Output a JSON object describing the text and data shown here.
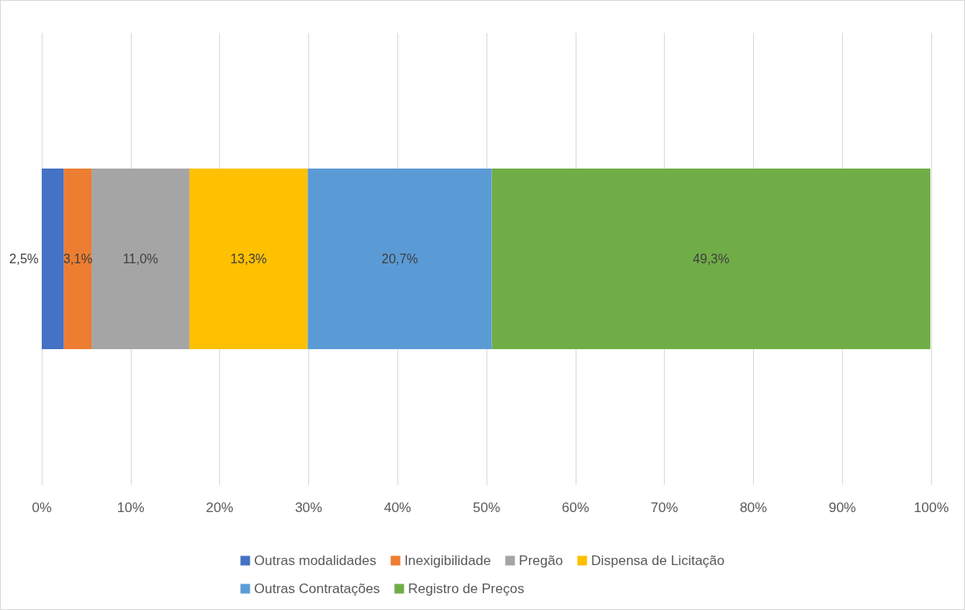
{
  "chart_data": {
    "type": "bar",
    "orientation": "horizontal",
    "stacked": true,
    "categories": [
      null
    ],
    "series": [
      {
        "name": "Outras modalidades",
        "color": "#4472c4",
        "values": [
          2.5
        ],
        "value_labels": [
          "2,5%"
        ]
      },
      {
        "name": "Inexigibilidade",
        "color": "#ed7d31",
        "values": [
          3.1
        ],
        "value_labels": [
          "3,1%"
        ]
      },
      {
        "name": "Pregão",
        "color": "#a5a5a5",
        "values": [
          11.0
        ],
        "value_labels": [
          "11,0%"
        ]
      },
      {
        "name": "Dispensa de Licitação",
        "color": "#ffc000",
        "values": [
          13.3
        ],
        "value_labels": [
          "13,3%"
        ]
      },
      {
        "name": "Outras Contratações",
        "color": "#5b9bd5",
        "values": [
          20.7
        ],
        "value_labels": [
          "20,7%"
        ]
      },
      {
        "name": "Registro de Preços",
        "color": "#70ad47",
        "values": [
          49.3
        ],
        "value_labels": [
          "49,3%"
        ]
      }
    ],
    "xlim": [
      0,
      100
    ],
    "xticks": [
      {
        "value": 0,
        "label": "0%"
      },
      {
        "value": 10,
        "label": "10%"
      },
      {
        "value": 20,
        "label": "20%"
      },
      {
        "value": 30,
        "label": "30%"
      },
      {
        "value": 40,
        "label": "40%"
      },
      {
        "value": 50,
        "label": "50%"
      },
      {
        "value": 60,
        "label": "60%"
      },
      {
        "value": 70,
        "label": "70%"
      },
      {
        "value": 80,
        "label": "80%"
      },
      {
        "value": 90,
        "label": "90%"
      },
      {
        "value": 100,
        "label": "100%"
      }
    ],
    "grid": "x",
    "legend": "bottom"
  }
}
